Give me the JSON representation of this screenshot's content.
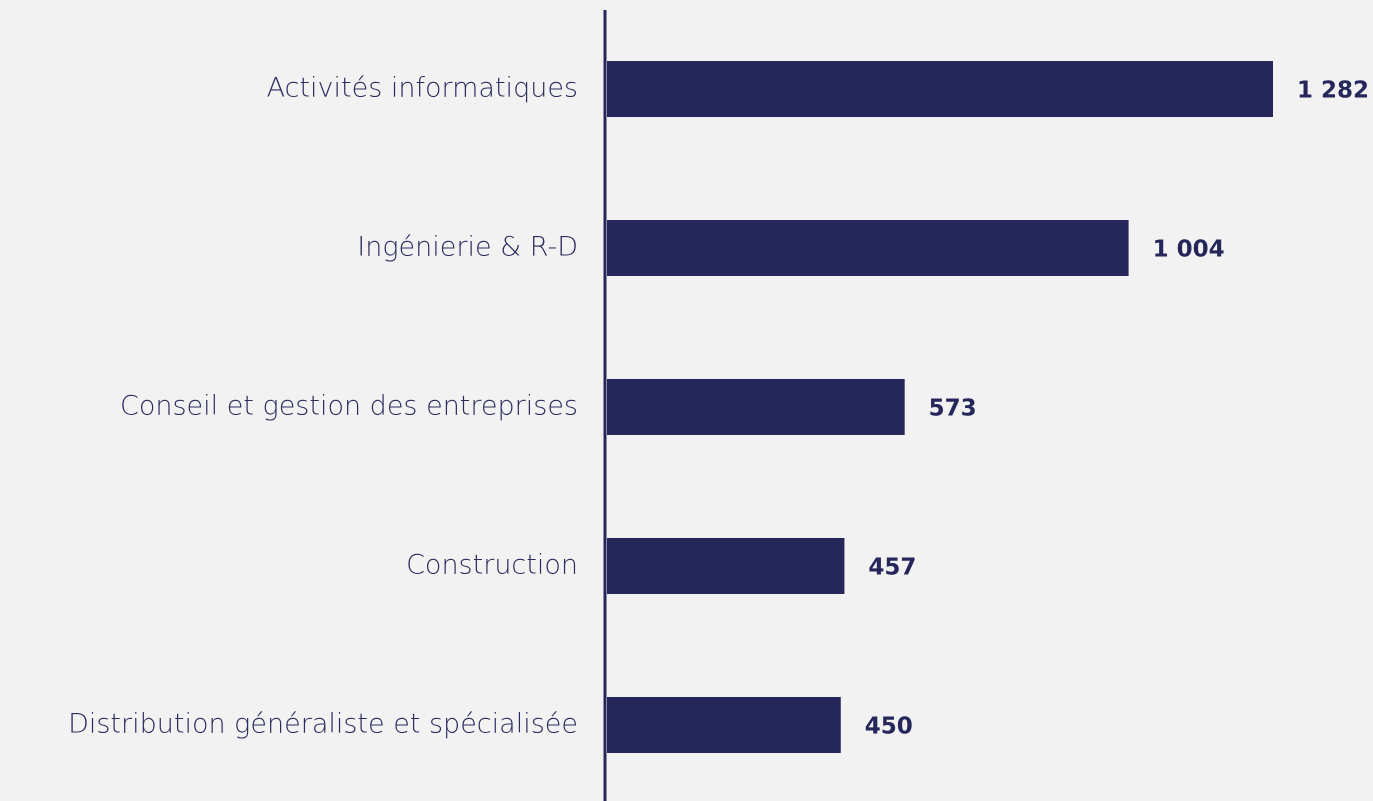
{
  "chart_data": {
    "type": "bar",
    "orientation": "horizontal",
    "categories": [
      "Activités informatiques",
      "Ingénierie & R-D",
      "Conseil et gestion des entreprises",
      "Construction",
      "Distribution généraliste et spécialisée"
    ],
    "values": [
      1282,
      1004,
      573,
      457,
      450
    ],
    "value_labels": [
      "1 282",
      "1 004",
      "573",
      "457",
      "450"
    ],
    "color": "#25265a"
  }
}
